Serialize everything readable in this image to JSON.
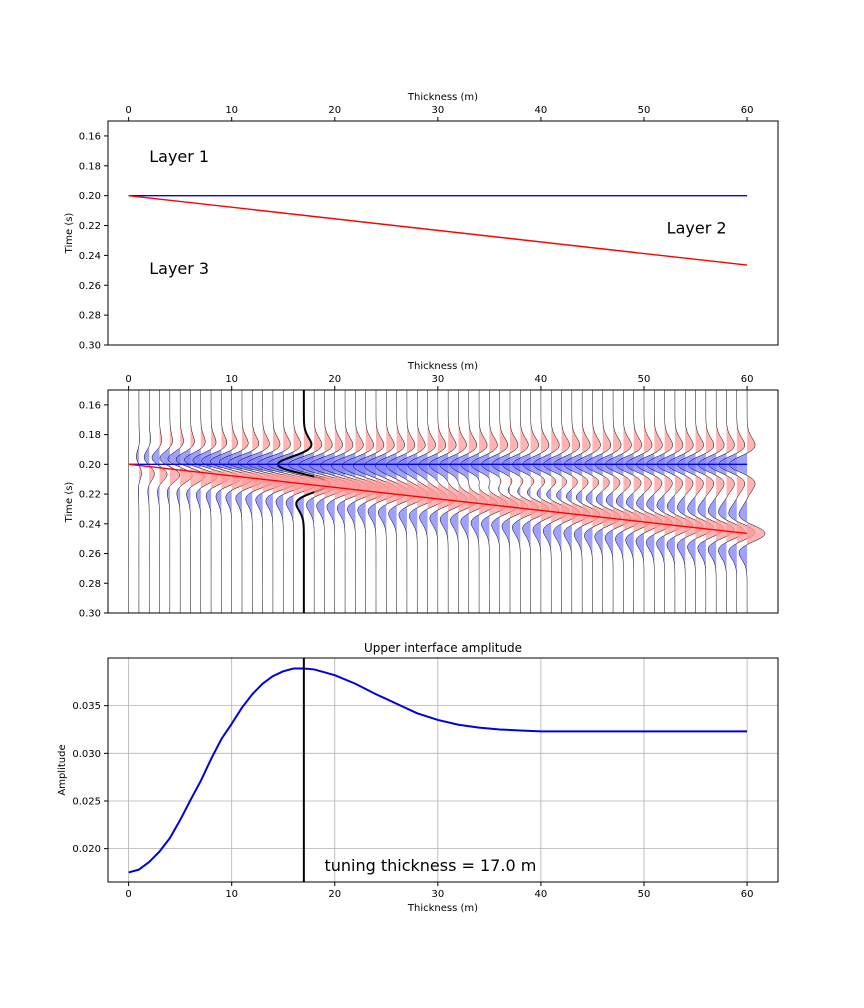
{
  "colors": {
    "upper_interface": "#0000ff",
    "lower_interface": "#ff0000",
    "positive_fill": "#ff9999",
    "negative_fill": "#8080ff",
    "trace": "#000000",
    "amplitude_curve": "#0000dd",
    "tuning_line": "#000000",
    "grid": "#b0b0b0"
  },
  "chart_data": [
    {
      "type": "line",
      "title": "",
      "xlabel": "Thickness (m)",
      "ylabel": "Time (s)",
      "xlim": [
        -2,
        63
      ],
      "ylim": [
        0.3,
        0.15
      ],
      "x_ticks": [
        0,
        10,
        20,
        30,
        40,
        50,
        60
      ],
      "y_ticks": [
        0.16,
        0.18,
        0.2,
        0.22,
        0.24,
        0.26,
        0.28,
        0.3
      ],
      "x_axis_position": "top",
      "grid": false,
      "series": [
        {
          "x": [
            0,
            60
          ],
          "y": [
            0.2,
            0.2
          ],
          "color": "#0000ff"
        },
        {
          "x": [
            0,
            60
          ],
          "y": [
            0.2,
            0.2465
          ],
          "color": "#ff0000"
        }
      ],
      "annotations": [
        {
          "text": "Layer 1",
          "x": 2,
          "y": 0.174
        },
        {
          "text": "Layer 2",
          "x": 52.2,
          "y": 0.222
        },
        {
          "text": "Layer 3",
          "x": 2,
          "y": 0.249
        }
      ]
    },
    {
      "type": "wiggle",
      "title": "",
      "xlabel": "Thickness (m)",
      "ylabel": "Time (s)",
      "xlim": [
        -2,
        63
      ],
      "ylim": [
        0.3,
        0.15
      ],
      "x_ticks": [
        0,
        10,
        20,
        30,
        40,
        50,
        60
      ],
      "y_ticks": [
        0.16,
        0.18,
        0.2,
        0.22,
        0.24,
        0.26,
        0.28,
        0.3
      ],
      "x_axis_position": "top",
      "grid": false,
      "trace_thickness_start": 0,
      "trace_thickness_end": 60,
      "trace_thickness_step": 1,
      "highlighted_trace_thickness": 17,
      "upper_interface_time": 0.2,
      "lower_interface_time_at_60m": 0.2465
    },
    {
      "type": "line",
      "title": "Upper interface amplitude",
      "xlabel": "Thickness (m)",
      "ylabel": "Amplitude",
      "xlim": [
        -2,
        63
      ],
      "ylim": [
        0.0165,
        0.04
      ],
      "x_ticks": [
        0,
        10,
        20,
        30,
        40,
        50,
        60
      ],
      "y_ticks": [
        0.02,
        0.025,
        0.03,
        0.035
      ],
      "x_tick_labels": [
        "0",
        "10",
        "20",
        "30",
        "40",
        "50",
        "60"
      ],
      "y_tick_labels": [
        "0.020",
        "0.025",
        "0.030",
        "0.035"
      ],
      "grid": true,
      "series": [
        {
          "x": [
            0,
            1,
            2,
            3,
            4,
            5,
            6,
            7,
            8,
            9,
            10,
            11,
            12,
            13,
            14,
            15,
            16,
            17,
            18,
            19,
            20,
            22,
            24,
            26,
            28,
            30,
            32,
            34,
            36,
            38,
            40,
            45,
            50,
            55,
            60
          ],
          "y": [
            0.0175,
            0.0178,
            0.0186,
            0.0197,
            0.0211,
            0.023,
            0.0251,
            0.0271,
            0.0294,
            0.0315,
            0.0331,
            0.0348,
            0.0362,
            0.0373,
            0.0381,
            0.0386,
            0.0389,
            0.0389,
            0.0388,
            0.0385,
            0.0382,
            0.0373,
            0.0362,
            0.0352,
            0.0342,
            0.0335,
            0.033,
            0.0327,
            0.0325,
            0.0324,
            0.0323,
            0.0323,
            0.0323,
            0.0323,
            0.0323
          ],
          "color": "#0000dd"
        }
      ],
      "vline_x": 17,
      "annotation": {
        "text": "tuning thickness = 17.0 m",
        "x": 19,
        "y": 0.0182
      }
    }
  ]
}
